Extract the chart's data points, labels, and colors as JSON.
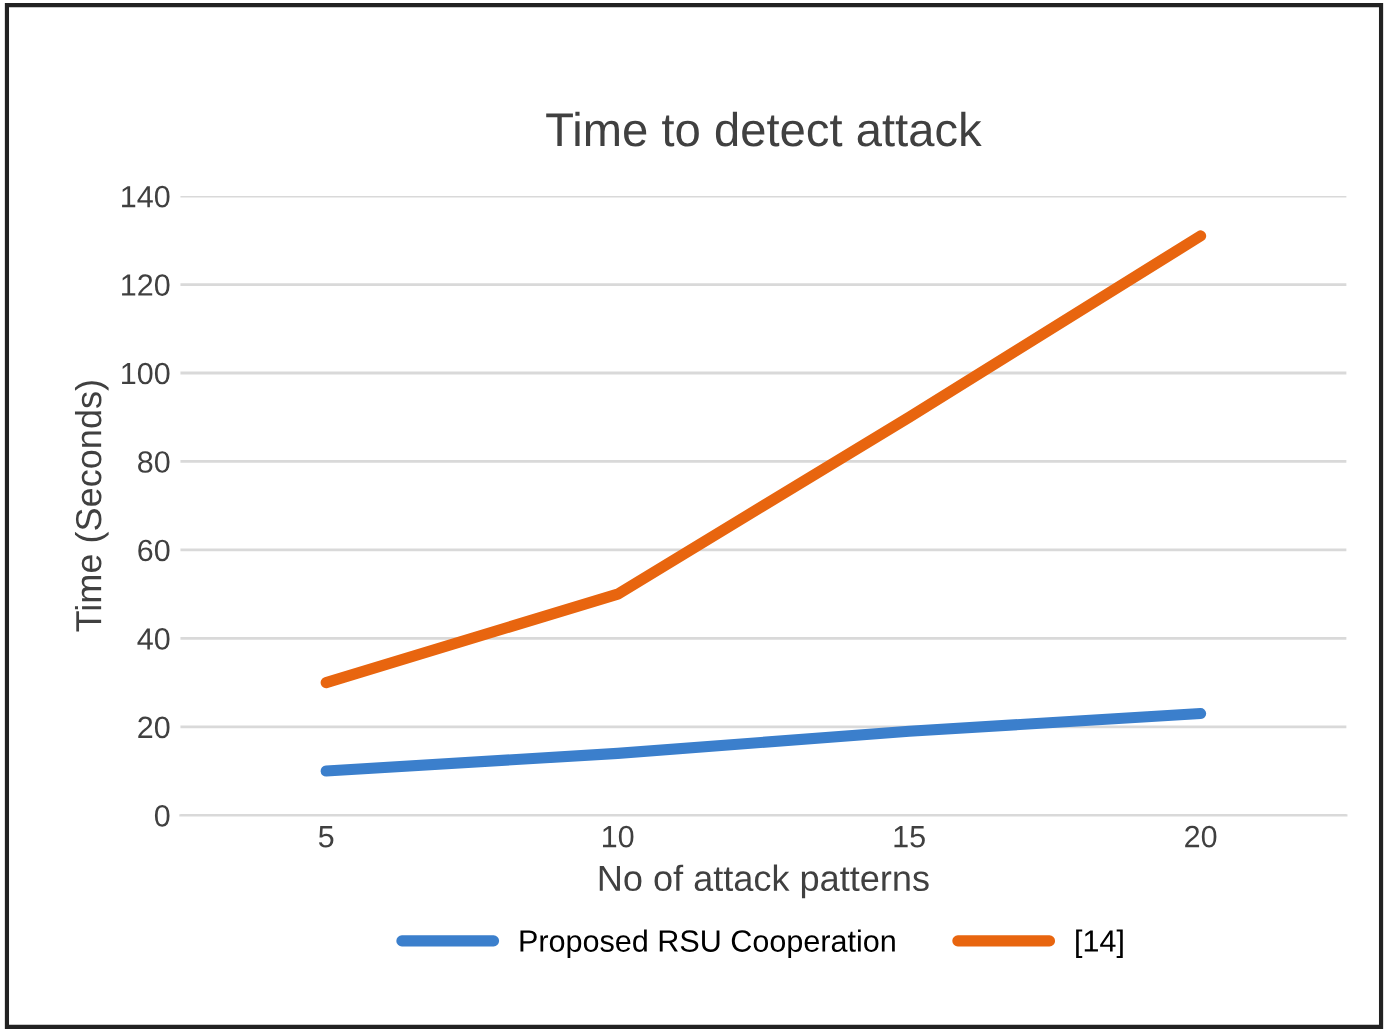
{
  "chart_data": {
    "type": "line",
    "title": "Time to detect attack",
    "xlabel": "No of attack patterns",
    "ylabel": "Time (Seconds)",
    "categories": [
      "5",
      "10",
      "15",
      "20"
    ],
    "series": [
      {
        "name": "Proposed RSU Cooperation",
        "color": "#3b7fcc",
        "values": [
          10,
          14,
          19,
          23
        ]
      },
      {
        "name": "[14]",
        "color": "#e8650f",
        "values": [
          30,
          50,
          90,
          131
        ]
      }
    ],
    "ylim": [
      0,
      140
    ],
    "yticks": [
      0,
      20,
      40,
      60,
      80,
      100,
      120,
      140
    ],
    "grid": "y",
    "legend": "bottom",
    "marker": "none",
    "line_style": "solid"
  }
}
